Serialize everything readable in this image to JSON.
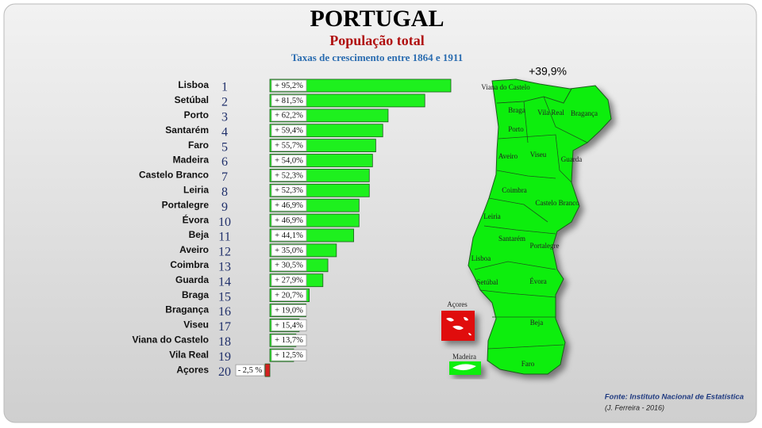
{
  "chart_data": {
    "type": "bar",
    "orientation": "horizontal",
    "title": "PORTUGAL",
    "subtitle": "População total",
    "caption": "Taxas de crescimento entre 1864 e 1911",
    "categories": [
      "Lisboa",
      "Setúbal",
      "Porto",
      "Santarém",
      "Faro",
      "Madeira",
      "Castelo Branco",
      "Leiria",
      "Portalegre",
      "Évora",
      "Beja",
      "Aveiro",
      "Coimbra",
      "Guarda",
      "Braga",
      "Bragança",
      "Viseu",
      "Viana do Castelo",
      "Vila Real",
      "Açores"
    ],
    "ranks": [
      1,
      2,
      3,
      4,
      5,
      6,
      7,
      8,
      9,
      10,
      11,
      12,
      13,
      14,
      15,
      16,
      17,
      18,
      19,
      20
    ],
    "values": [
      95.2,
      81.5,
      62.2,
      59.4,
      55.7,
      54.0,
      52.3,
      52.3,
      46.9,
      46.9,
      44.1,
      35.0,
      30.5,
      27.9,
      20.7,
      19.0,
      15.4,
      13.7,
      12.5,
      -2.5
    ],
    "value_labels": [
      "+ 95,2%",
      "+ 81,5%",
      "+ 62,2%",
      "+ 59,4%",
      "+ 55,7%",
      "+ 54,0%",
      "+ 52,3%",
      "+ 52,3%",
      "+ 46,9%",
      "+ 46,9%",
      "+ 44,1%",
      "+ 35,0%",
      "+ 30,5%",
      "+ 27,9%",
      "+ 20,7%",
      "+ 19,0%",
      "+ 15,4%",
      "+ 13,7%",
      "+ 12,5%",
      "- 2,5 %"
    ],
    "color": "#1ef01e",
    "negative_color": "#d42020",
    "map_total": "+39,9%",
    "map_labels": [
      "Viana do Castelo",
      "Braga",
      "Vila Real",
      "Bragança",
      "Porto",
      "Aveiro",
      "Viseu",
      "Guarda",
      "Coimbra",
      "Castelo Branco",
      "Leiria",
      "Santarém",
      "Portalegre",
      "Lisboa",
      "Setúbal",
      "Évora",
      "Beja",
      "Faro",
      "Açores",
      "Madeira"
    ],
    "source": "Fonte: Instituto Nacional de Estatística",
    "author": "(J. Ferreira - 2016)"
  }
}
